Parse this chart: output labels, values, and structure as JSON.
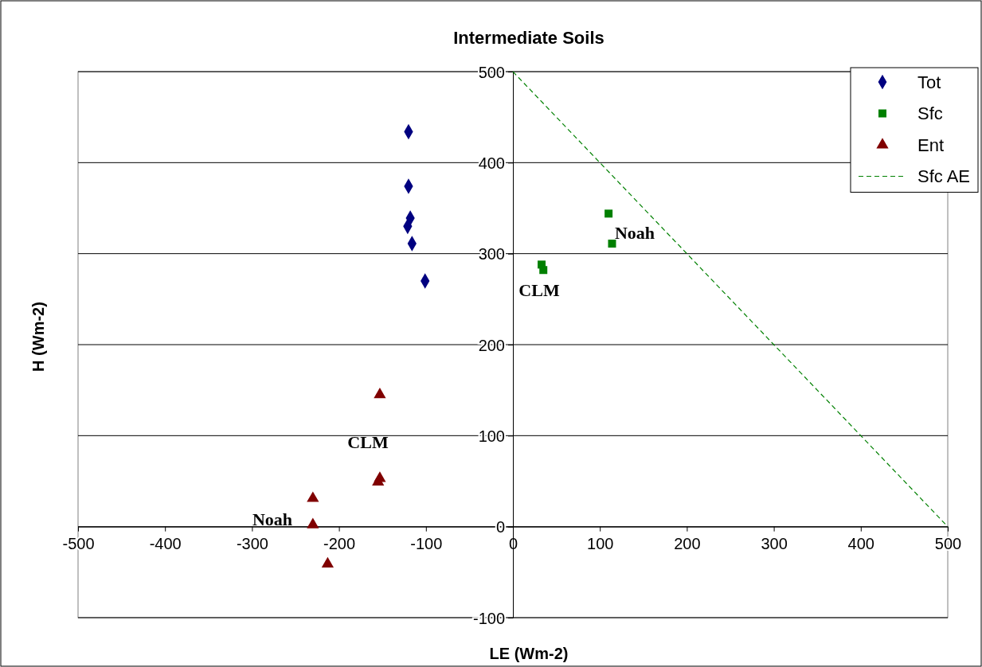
{
  "chart_data": {
    "type": "scatter",
    "title": "Intermediate Soils",
    "xlabel": "LE (Wm-2)",
    "ylabel": "H (Wm-2)",
    "xlim": [
      -500,
      500
    ],
    "xticks": [
      -500,
      -400,
      -300,
      -200,
      -100,
      0,
      100,
      200,
      300,
      400,
      500
    ],
    "ylim": [
      -100,
      500
    ],
    "yticks": [
      -100,
      0,
      100,
      200,
      300,
      400,
      500
    ],
    "grid": "y",
    "legend": "top right",
    "series": [
      {
        "name": "Tot",
        "marker": "diamond",
        "color": "#000080",
        "x": [
          -120,
          -120,
          -118,
          -121,
          -116,
          -101
        ],
        "values": [
          434,
          374,
          339,
          330,
          311,
          270
        ]
      },
      {
        "name": "Sfc",
        "marker": "square",
        "color": "#008000",
        "x": [
          33,
          35,
          110,
          114
        ],
        "values": [
          288,
          282,
          344,
          311
        ]
      },
      {
        "name": "Ent",
        "marker": "triangle",
        "color": "#800000",
        "x": [
          -153,
          -153,
          -155,
          -230,
          -230,
          -213
        ],
        "values": [
          145,
          53,
          49,
          31,
          2,
          -41
        ]
      },
      {
        "name": "Sfc AE",
        "type": "line",
        "marker": "none",
        "line_style": "dashed",
        "color": "#008000",
        "x": [
          0,
          500
        ],
        "values": [
          500,
          0
        ]
      }
    ],
    "annotations": [
      "Noah",
      "CLM",
      "CLM",
      "Noah"
    ]
  }
}
